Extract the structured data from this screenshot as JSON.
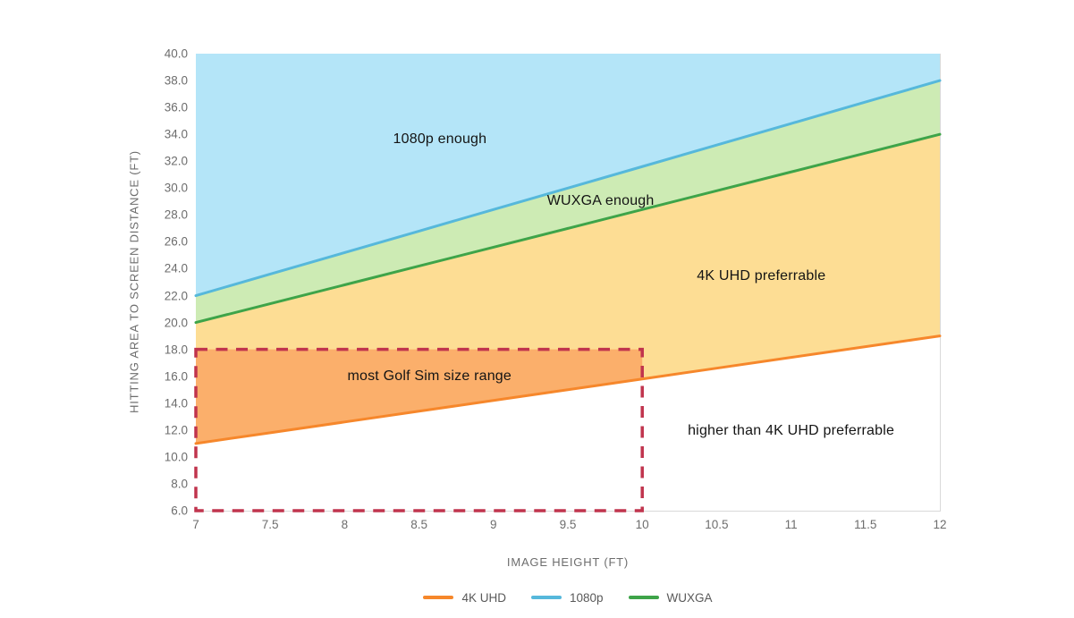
{
  "chart_data": {
    "type": "area",
    "title": "",
    "xlabel": "IMAGE HEIGHT (FT)",
    "ylabel": "HITTING AREA TO SCREEN DISTANCE (FT)",
    "xlim": [
      7,
      12
    ],
    "ylim": [
      6,
      40
    ],
    "grid": false,
    "x_ticks": [
      "7",
      "7.5",
      "8",
      "8.5",
      "9",
      "9.5",
      "10",
      "10.5",
      "11",
      "11.5",
      "12"
    ],
    "y_ticks": [
      "40.0",
      "38.0",
      "36.0",
      "34.0",
      "32.0",
      "30.0",
      "28.0",
      "26.0",
      "24.0",
      "22.0",
      "20.0",
      "18.0",
      "16.0",
      "14.0",
      "12.0",
      "10.0",
      "8.0",
      "6.0"
    ],
    "x": [
      7,
      7.5,
      8,
      8.5,
      9,
      9.5,
      10,
      10.5,
      11,
      11.5,
      12
    ],
    "series": [
      {
        "name": "4K UHD",
        "color": "#F6872B",
        "values": [
          11.0,
          11.8,
          12.6,
          13.4,
          14.2,
          15.0,
          15.8,
          16.6,
          17.4,
          18.2,
          19.0
        ]
      },
      {
        "name": "1080p",
        "color": "#56B8DB",
        "values": [
          22.0,
          23.6,
          25.2,
          26.8,
          28.4,
          30.0,
          31.6,
          33.2,
          34.8,
          36.4,
          38.0
        ]
      },
      {
        "name": "WUXGA",
        "color": "#3EA449",
        "values": [
          20.0,
          21.4,
          22.8,
          24.2,
          25.6,
          27.0,
          28.4,
          29.8,
          31.2,
          32.6,
          34.0
        ]
      }
    ],
    "regions": [
      {
        "label": "1080p enough",
        "fill": "#B4E5F8",
        "upper": "ymax",
        "lower": "1080p"
      },
      {
        "label": "WUXGA enough",
        "fill": "#CDEBB4",
        "upper": "1080p",
        "lower": "WUXGA"
      },
      {
        "label": "4K UHD preferrable",
        "fill": "#FDDD94",
        "upper": "WUXGA",
        "lower": "4K UHD"
      }
    ],
    "highlight": {
      "label": "most Golf Sim size range",
      "x0": 7,
      "x1": 10,
      "y0": 6,
      "y1": 18,
      "fill": "#FBAF6B",
      "border_color": "#C0344D",
      "series": "4K UHD"
    },
    "annotations": [
      {
        "text": "1080p enough",
        "x": 8.64,
        "y": 33.6
      },
      {
        "text": "WUXGA enough",
        "x": 9.72,
        "y": 29.0
      },
      {
        "text": "4K UHD preferrable",
        "x": 10.8,
        "y": 23.4
      },
      {
        "text": "most Golf Sim size range",
        "x": 8.57,
        "y": 16.0
      },
      {
        "text": "higher than 4K UHD preferrable",
        "x": 11.0,
        "y": 11.9
      }
    ],
    "legend": {
      "position": "bottom",
      "items": [
        "4K UHD",
        "1080p",
        "WUXGA"
      ]
    }
  }
}
